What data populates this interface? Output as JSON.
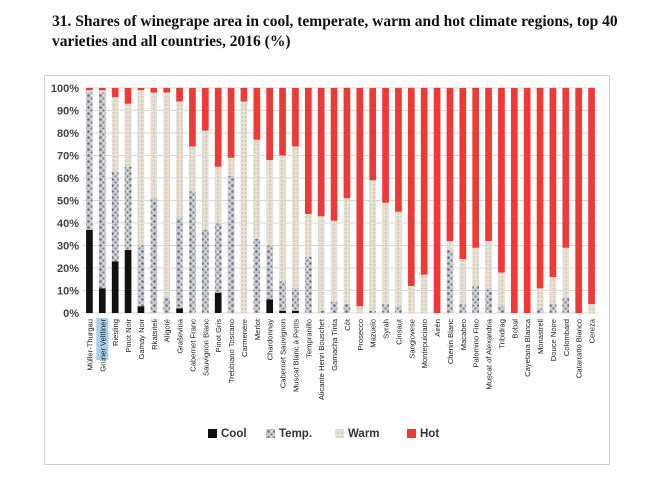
{
  "title": "31. Shares of winegrape area in cool, temperate, warm and hot climate regions, top 40 varieties and all countries, 2016 (%)",
  "colors": {
    "cool": "#111111",
    "temp": "#9ea0a8",
    "warm": "#ddd7c8",
    "hot": "#ee3a37"
  },
  "chart_data": {
    "type": "bar",
    "stacked": true,
    "title": "31. Shares of winegrape area in cool, temperate, warm and hot climate regions, top 40 varieties and all countries, 2016 (%)",
    "xlabel": "",
    "ylabel": "",
    "ylim": [
      0,
      100
    ],
    "yticks": [
      "0%",
      "10%",
      "20%",
      "30%",
      "40%",
      "50%",
      "60%",
      "70%",
      "80%",
      "90%",
      "100%"
    ],
    "grid": true,
    "legend": "bottom",
    "highlighted_category": "Grüner Veltliner",
    "categories": [
      "Müller-Thurgau",
      "Grüner Veltliner",
      "Riesling",
      "Pinot Noir",
      "Gamay Noir",
      "Rkatsiteli",
      "Aligoté",
      "Graševina",
      "Cabernet Franc",
      "Sauvignon Blanc",
      "Pinot Gris",
      "Trebbiano Toscano",
      "Carmenère",
      "Merlot",
      "Chardonnay",
      "Cabernet Sauvignon",
      "Muscat Blanc à Petits",
      "Tempranillo",
      "Alicante Henri Bouschet",
      "Garnacha Tinta",
      "Côt",
      "Prosecco",
      "Mazuelo",
      "Syrah",
      "Cinsaut",
      "Sangiovese",
      "Montepulciano",
      "Airén",
      "Chenin Blanc",
      "Macabeo",
      "Palomino Fino",
      "Muscat of Alexandria",
      "Tribidrag",
      "Bobal",
      "Cayetana Blanca",
      "Monastrell",
      "Douce Noire",
      "Colombard",
      "Catarratto Bianco",
      "Cereza"
    ],
    "series": [
      {
        "name": "Cool",
        "values": [
          37,
          11,
          23,
          28,
          3,
          0,
          0,
          2,
          0,
          0,
          9,
          0,
          0,
          0,
          6,
          1,
          1,
          0,
          0,
          0,
          0,
          0,
          0,
          0,
          0,
          0,
          0,
          0,
          0,
          0,
          0,
          0,
          0,
          0,
          0,
          0,
          0,
          0,
          0,
          0
        ]
      },
      {
        "name": "Temp.",
        "values": [
          61,
          87,
          40,
          37,
          27,
          51,
          7,
          40,
          54,
          37,
          31,
          61,
          0,
          33,
          24,
          13,
          10,
          25,
          1,
          5,
          4,
          0,
          1,
          4,
          3,
          0,
          0,
          0,
          28,
          4,
          12,
          11,
          3,
          0,
          0,
          2,
          4,
          7,
          0,
          0
        ]
      },
      {
        "name": "Warm",
        "values": [
          1,
          1,
          33,
          28,
          69,
          47,
          91,
          52,
          20,
          44,
          25,
          8,
          94,
          44,
          38,
          56,
          63,
          19,
          42,
          36,
          47,
          3,
          58,
          45,
          42,
          12,
          17,
          0,
          4,
          20,
          17,
          21,
          15,
          0,
          0,
          9,
          12,
          22,
          0,
          4
        ]
      },
      {
        "name": "Hot",
        "values": [
          1,
          1,
          4,
          7,
          1,
          2,
          2,
          6,
          26,
          19,
          35,
          31,
          6,
          23,
          32,
          30,
          26,
          56,
          57,
          59,
          49,
          97,
          41,
          51,
          55,
          88,
          83,
          100,
          68,
          76,
          71,
          68,
          82,
          100,
          100,
          89,
          84,
          71,
          100,
          96
        ]
      }
    ]
  }
}
